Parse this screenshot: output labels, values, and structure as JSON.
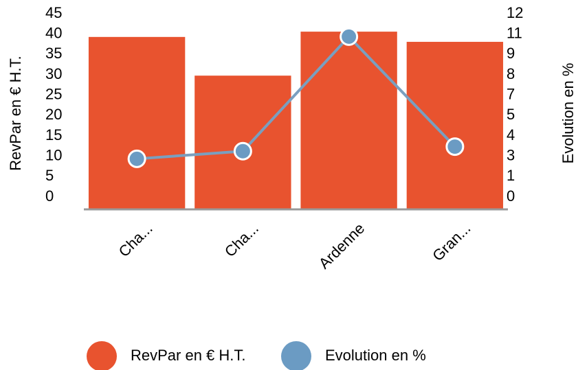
{
  "chart_data": {
    "type": "bar",
    "categories": [
      "Cha...",
      "Cha...",
      "Ardenne",
      "Gran..."
    ],
    "series": [
      {
        "name": "RevPar en € H.T.",
        "color": "#e8532f",
        "values": [
          39.3,
          29.8,
          40.6,
          38.1
        ]
      },
      {
        "name": "Evolution en %",
        "color": "#6b9bc3",
        "type": "line",
        "axis": "y2",
        "values": [
          2.5,
          3.0,
          10.5,
          3.3
        ]
      }
    ],
    "ylabel": "RevPar en € H.T.",
    "y2label": "Evolution en %",
    "ylim": [
      0,
      45
    ],
    "yticks": [
      0,
      5,
      10,
      15,
      20,
      25,
      30,
      35,
      40,
      45
    ],
    "y2lim": [
      0,
      12
    ],
    "y2ticks": [
      0,
      {
        "value": 1.333,
        "label": "1"
      },
      {
        "value": 2.667,
        "label": "3"
      },
      4,
      {
        "value": 5.333,
        "label": "5"
      },
      {
        "value": 6.667,
        "label": "7"
      },
      8,
      {
        "value": 9.333,
        "label": "9"
      },
      {
        "value": 10.667,
        "label": "11"
      },
      12
    ],
    "legend": "bottom"
  }
}
